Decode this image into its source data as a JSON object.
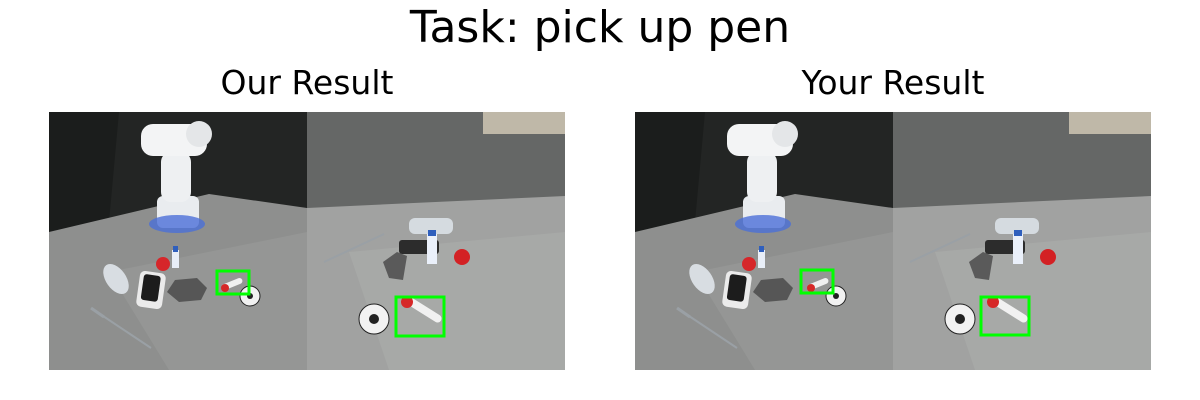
{
  "title": "Task: pick up pen",
  "panels": [
    {
      "title": "Our Result"
    },
    {
      "title": "Your Result"
    }
  ],
  "colors": {
    "bbox": "#00ff00",
    "background": "#ffffff"
  }
}
